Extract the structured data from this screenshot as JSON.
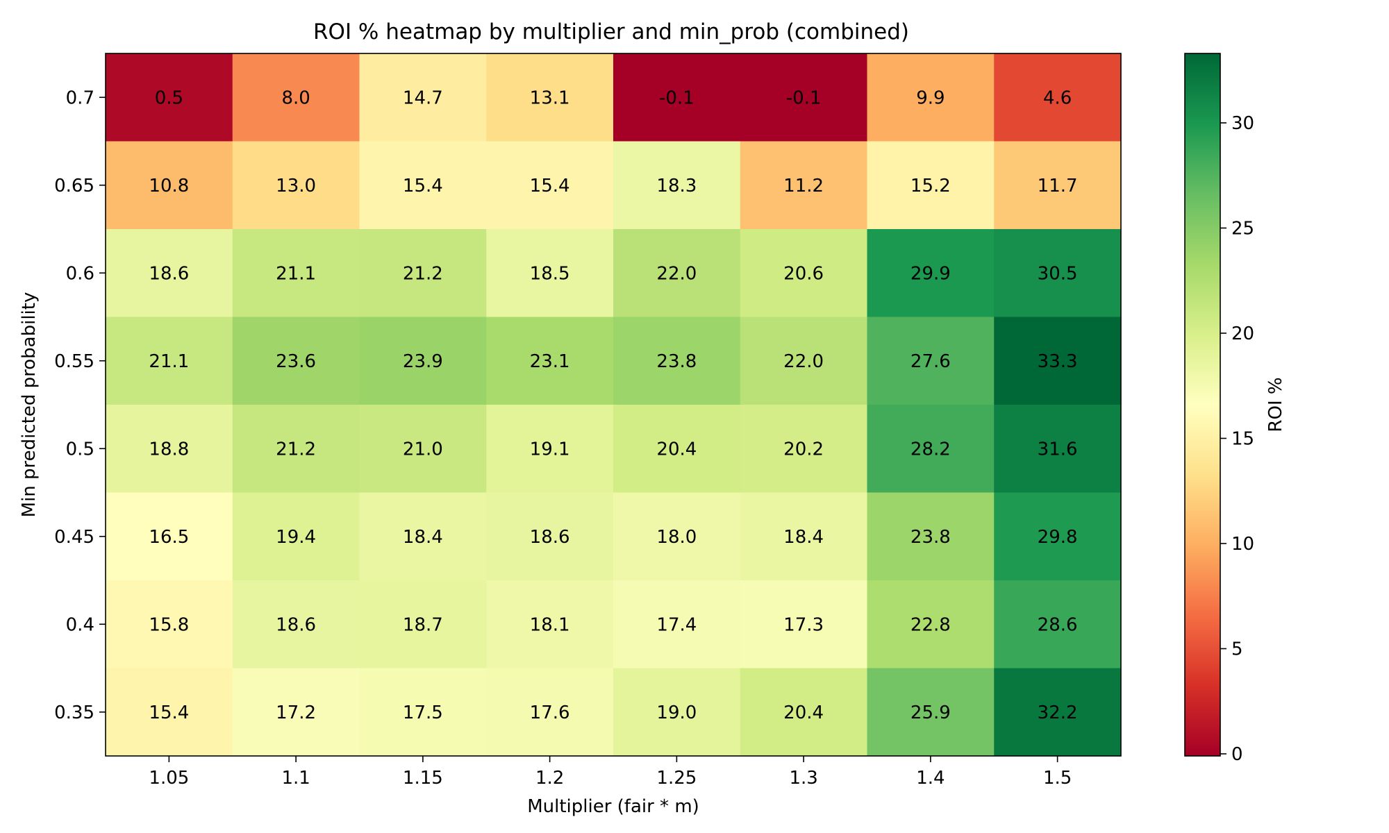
{
  "chart_data": {
    "type": "heatmap",
    "title": "ROI % heatmap by multiplier and min_prob (combined)",
    "xlabel": "Multiplier (fair * m)",
    "ylabel": "Min predicted probability",
    "x_categories": [
      "1.05",
      "1.1",
      "1.15",
      "1.2",
      "1.25",
      "1.3",
      "1.4",
      "1.5"
    ],
    "y_categories": [
      "0.7",
      "0.65",
      "0.6",
      "0.55",
      "0.5",
      "0.45",
      "0.4",
      "0.35"
    ],
    "values": [
      [
        0.5,
        8.0,
        14.7,
        13.1,
        -0.1,
        -0.1,
        9.9,
        4.6
      ],
      [
        10.8,
        13.0,
        15.4,
        15.4,
        18.3,
        11.2,
        15.2,
        11.7
      ],
      [
        18.6,
        21.1,
        21.2,
        18.5,
        22.0,
        20.6,
        29.9,
        30.5
      ],
      [
        21.1,
        23.6,
        23.9,
        23.1,
        23.8,
        22.0,
        27.6,
        33.3
      ],
      [
        18.8,
        21.2,
        21.0,
        19.1,
        20.4,
        20.2,
        28.2,
        31.6
      ],
      [
        16.5,
        19.4,
        18.4,
        18.6,
        18.0,
        18.4,
        23.8,
        29.8
      ],
      [
        15.8,
        18.6,
        18.7,
        18.1,
        17.4,
        17.3,
        22.8,
        28.6
      ],
      [
        15.4,
        17.2,
        17.5,
        17.6,
        19.0,
        20.4,
        25.9,
        32.2
      ]
    ],
    "colormap": "RdYlGn",
    "color_range": [
      -0.1,
      33.3
    ],
    "colorbar": {
      "label": "ROI %",
      "ticks": [
        0,
        5,
        10,
        15,
        20,
        25,
        30
      ]
    },
    "grid": false,
    "legend": "none"
  }
}
